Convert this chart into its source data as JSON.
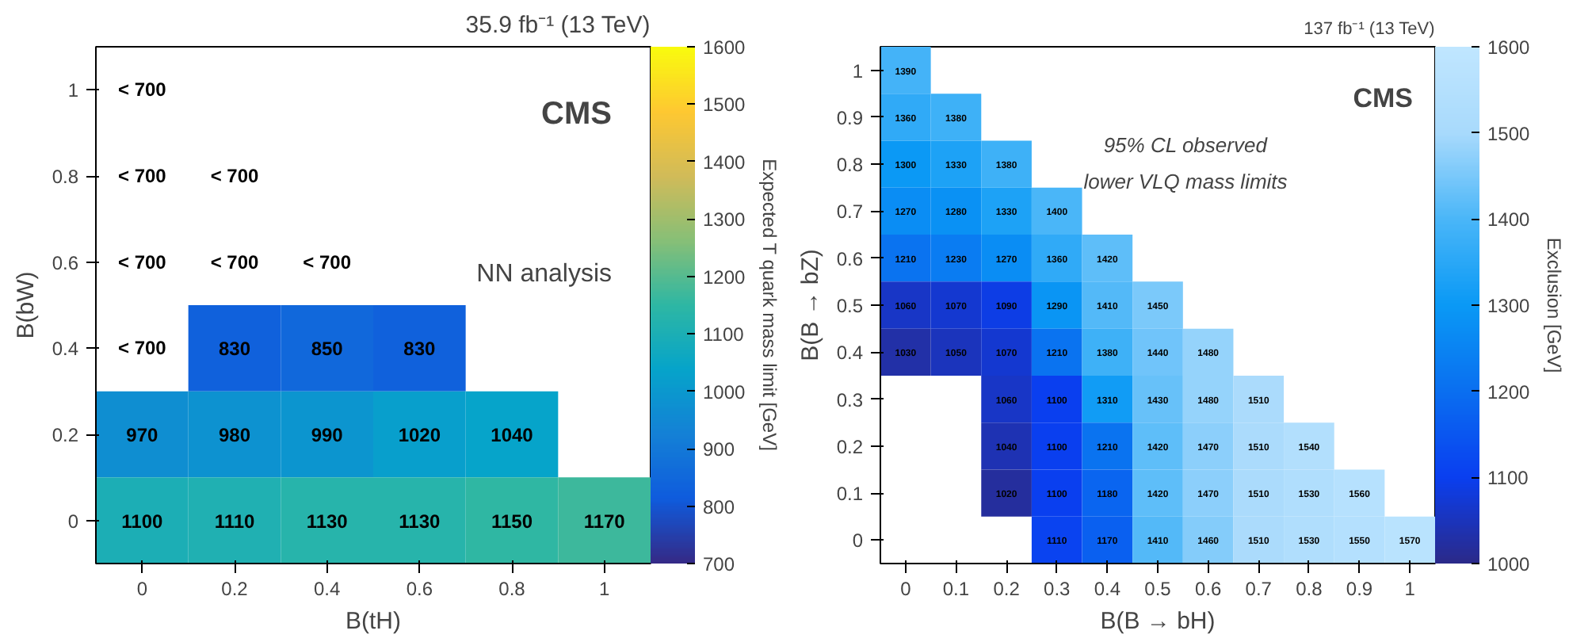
{
  "chart_data": [
    {
      "type": "heatmap",
      "title": "35.9 fb⁻¹ (13 TeV)",
      "xlabel": "B(tH)",
      "ylabel": "B(bW)",
      "clabel": "Expected T quark mass limit [GeV]",
      "annotations": [
        "CMS",
        "NN analysis"
      ],
      "categories": [
        "0",
        "0.2",
        "0.4",
        "0.6",
        "0.8",
        "1"
      ],
      "y_categories": [
        "1",
        "0.8",
        "0.6",
        "0.4",
        "0.2",
        "0"
      ],
      "cells": [
        [
          null,
          null,
          null,
          null,
          null,
          null
        ],
        [
          null,
          null,
          null,
          null,
          null,
          null
        ],
        [
          null,
          null,
          null,
          null,
          null,
          null
        ],
        [
          null,
          830,
          850,
          830,
          null,
          null
        ],
        [
          970,
          980,
          990,
          1020,
          1040,
          null
        ],
        [
          1100,
          1110,
          1130,
          1130,
          1150,
          1170
        ]
      ],
      "cell_labels": [
        [
          "< 700",
          null,
          null,
          null,
          null,
          null
        ],
        [
          "< 700",
          "< 700",
          null,
          null,
          null,
          null
        ],
        [
          "< 700",
          "< 700",
          "< 700",
          null,
          null,
          null
        ],
        [
          "< 700",
          "830",
          "850",
          "830",
          null,
          null
        ],
        [
          "970",
          "980",
          "990",
          "1020",
          "1040",
          null
        ],
        [
          "1100",
          "1110",
          "1130",
          "1130",
          "1150",
          "1170"
        ]
      ],
      "clim": [
        700,
        1600
      ],
      "cticks": [
        700,
        800,
        900,
        1000,
        1100,
        1200,
        1300,
        1400,
        1500,
        1600
      ]
    },
    {
      "type": "heatmap",
      "title": "137 fb⁻¹ (13 TeV)",
      "xlabel": "B(B → bH)",
      "ylabel": "B(B → bZ)",
      "clabel": "Exclusion [GeV]",
      "annotations": [
        "CMS",
        "95% CL observed",
        "lower VLQ mass limits"
      ],
      "categories": [
        "0",
        "0.1",
        "0.2",
        "0.3",
        "0.4",
        "0.5",
        "0.6",
        "0.7",
        "0.8",
        "0.9",
        "1"
      ],
      "y_categories": [
        "1",
        "0.9",
        "0.8",
        "0.7",
        "0.6",
        "0.5",
        "0.4",
        "0.3",
        "0.2",
        "0.1",
        "0"
      ],
      "cells": [
        [
          1390,
          null,
          null,
          null,
          null,
          null,
          null,
          null,
          null,
          null,
          null
        ],
        [
          1360,
          1380,
          null,
          null,
          null,
          null,
          null,
          null,
          null,
          null,
          null
        ],
        [
          1300,
          1330,
          1380,
          null,
          null,
          null,
          null,
          null,
          null,
          null,
          null
        ],
        [
          1270,
          1280,
          1330,
          1400,
          null,
          null,
          null,
          null,
          null,
          null,
          null
        ],
        [
          1210,
          1230,
          1270,
          1360,
          1420,
          null,
          null,
          null,
          null,
          null,
          null
        ],
        [
          1060,
          1070,
          1090,
          1290,
          1410,
          1450,
          null,
          null,
          null,
          null,
          null
        ],
        [
          1030,
          1050,
          1070,
          1210,
          1380,
          1440,
          1480,
          null,
          null,
          null,
          null
        ],
        [
          null,
          null,
          1060,
          1100,
          1310,
          1430,
          1480,
          1510,
          null,
          null,
          null
        ],
        [
          null,
          null,
          1040,
          1100,
          1210,
          1420,
          1470,
          1510,
          1540,
          null,
          null
        ],
        [
          null,
          null,
          1020,
          1100,
          1180,
          1420,
          1470,
          1510,
          1530,
          1560,
          null
        ],
        [
          null,
          null,
          null,
          1110,
          1170,
          1410,
          1460,
          1510,
          1530,
          1550,
          1570
        ]
      ],
      "data_labels": true,
      "clim": [
        1000,
        1600
      ],
      "cticks": [
        1000,
        1100,
        1200,
        1300,
        1400,
        1500,
        1600
      ]
    }
  ]
}
